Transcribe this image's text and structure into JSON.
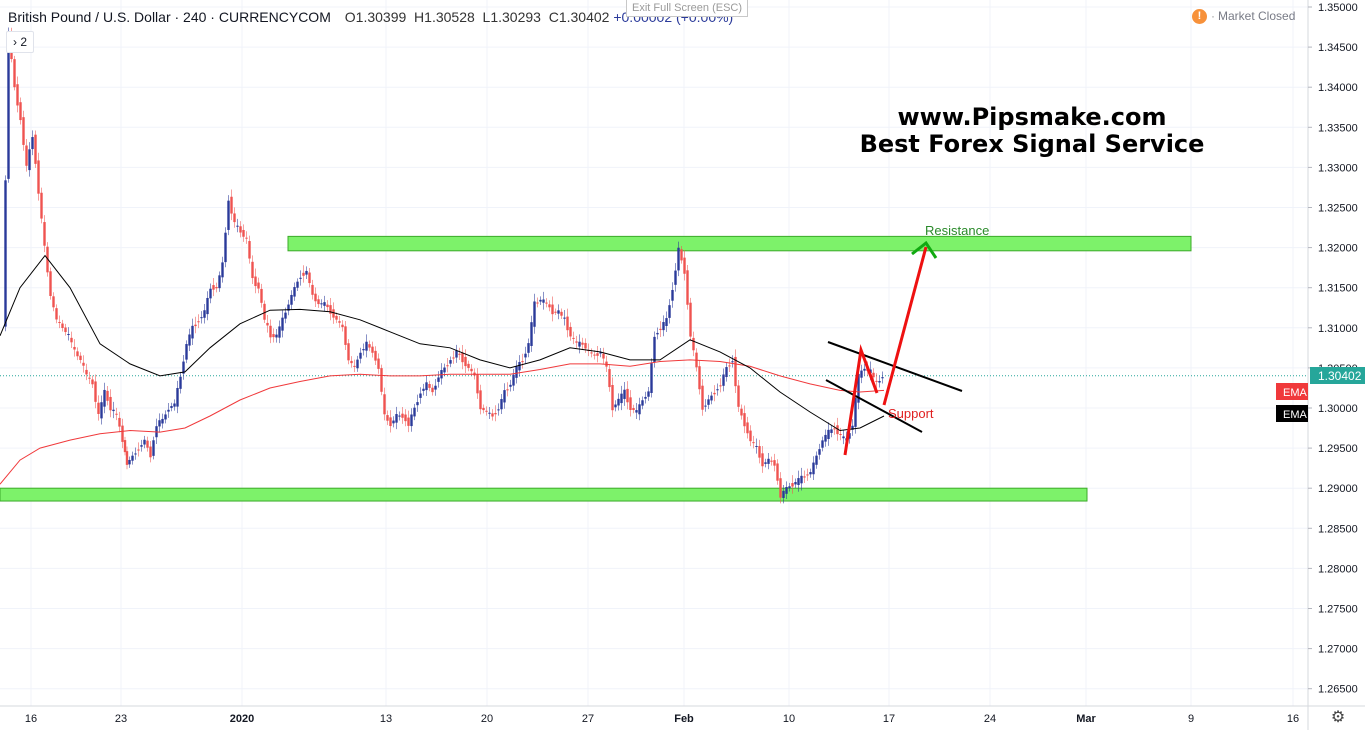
{
  "header": {
    "symbol": "British Pound / U.S. Dollar · 240 · CURRENCYCOM",
    "open": "O1.30399",
    "high": "H1.30528",
    "low": "L1.30293",
    "close": "C1.30402",
    "change": "+0.00002 (+0.00%)"
  },
  "toolbar": {
    "exit_fullscreen": "Exit Full Screen (ESC)",
    "collapse_count": "2",
    "market_status": "Market Closed",
    "market_status_icon": "warning-icon",
    "settings_icon": "gear-icon"
  },
  "watermark": {
    "line1": "www.Pipsmake.com",
    "line2": "Best Forex Signal Service"
  },
  "annotations": {
    "resistance": "Resistance",
    "support": "Support"
  },
  "price_axis": {
    "ticks": [
      "1.35000",
      "1.34500",
      "1.34000",
      "1.33500",
      "1.33000",
      "1.32500",
      "1.32000",
      "1.31500",
      "1.31000",
      "1.30500",
      "1.30000",
      "1.29500",
      "1.29000",
      "1.28500",
      "1.28000",
      "1.27500",
      "1.27000",
      "1.26500"
    ],
    "current_price": "1.30402",
    "current_price_color": "#26a69a",
    "ema_fast_label": "EMA",
    "ema_fast_color": "#f0393b",
    "ema_slow_label": "EMA",
    "ema_slow_color": "#000000"
  },
  "time_axis": {
    "ticks": [
      "16",
      "23",
      "2020",
      "13",
      "20",
      "27",
      "Feb",
      "10",
      "17",
      "24",
      "Mar",
      "9",
      "16"
    ]
  },
  "colors": {
    "up_candle": "#2a3a9a",
    "down_candle": "#ef5350",
    "zone_fill": "#7df26a",
    "zone_border": "#3caa2a",
    "resistance_text": "#2a8a2a",
    "support_text": "#e02020",
    "arrow": "#ee1111"
  },
  "chart_data": {
    "type": "candlestick",
    "symbol": "GBPUSD",
    "timeframe": "240",
    "ylim": [
      1.2625,
      1.3505
    ],
    "levels": {
      "resistance_zone": [
        1.3196,
        1.3214
      ],
      "support_zone": [
        1.2884,
        1.29
      ],
      "last_price": 1.30402
    },
    "price_path": [
      [
        4,
        1.31
      ],
      [
        10,
        1.347
      ],
      [
        16,
        1.34
      ],
      [
        22,
        1.336
      ],
      [
        28,
        1.33
      ],
      [
        34,
        1.334
      ],
      [
        40,
        1.327
      ],
      [
        46,
        1.32
      ],
      [
        52,
        1.314
      ],
      [
        58,
        1.311
      ],
      [
        64,
        1.31
      ],
      [
        70,
        1.309
      ],
      [
        76,
        1.307
      ],
      [
        82,
        1.306
      ],
      [
        88,
        1.304
      ],
      [
        94,
        1.303
      ],
      [
        100,
        1.299
      ],
      [
        106,
        1.302
      ],
      [
        112,
        1.3
      ],
      [
        118,
        1.299
      ],
      [
        124,
        1.296
      ],
      [
        128,
        1.293
      ],
      [
        134,
        1.294
      ],
      [
        140,
        1.295
      ],
      [
        146,
        1.296
      ],
      [
        152,
        1.294
      ],
      [
        158,
        1.298
      ],
      [
        164,
        1.2985
      ],
      [
        170,
        1.3
      ],
      [
        176,
        1.3005
      ],
      [
        182,
        1.304
      ],
      [
        188,
        1.308
      ],
      [
        194,
        1.31
      ],
      [
        200,
        1.311
      ],
      [
        206,
        1.312
      ],
      [
        212,
        1.315
      ],
      [
        218,
        1.315
      ],
      [
        224,
        1.318
      ],
      [
        230,
        1.326
      ],
      [
        236,
        1.323
      ],
      [
        242,
        1.322
      ],
      [
        248,
        1.321
      ],
      [
        254,
        1.316
      ],
      [
        260,
        1.315
      ],
      [
        266,
        1.311
      ],
      [
        272,
        1.309
      ],
      [
        278,
        1.309
      ],
      [
        284,
        1.311
      ],
      [
        290,
        1.313
      ],
      [
        296,
        1.315
      ],
      [
        302,
        1.3165
      ],
      [
        308,
        1.317
      ],
      [
        314,
        1.314
      ],
      [
        320,
        1.313
      ],
      [
        326,
        1.313
      ],
      [
        332,
        1.312
      ],
      [
        338,
        1.311
      ],
      [
        344,
        1.31
      ],
      [
        350,
        1.306
      ],
      [
        356,
        1.305
      ],
      [
        362,
        1.307
      ],
      [
        368,
        1.308
      ],
      [
        374,
        1.307
      ],
      [
        380,
        1.305
      ],
      [
        386,
        1.299
      ],
      [
        392,
        1.298
      ],
      [
        398,
        1.299
      ],
      [
        404,
        1.299
      ],
      [
        410,
        1.298
      ],
      [
        416,
        1.3
      ],
      [
        422,
        1.302
      ],
      [
        428,
        1.303
      ],
      [
        434,
        1.302
      ],
      [
        440,
        1.304
      ],
      [
        446,
        1.305
      ],
      [
        452,
        1.306
      ],
      [
        458,
        1.307
      ],
      [
        464,
        1.306
      ],
      [
        470,
        1.305
      ],
      [
        476,
        1.304
      ],
      [
        482,
        1.3
      ],
      [
        488,
        1.2995
      ],
      [
        494,
        1.299
      ],
      [
        500,
        1.3
      ],
      [
        506,
        1.302
      ],
      [
        512,
        1.303
      ],
      [
        518,
        1.305
      ],
      [
        524,
        1.306
      ],
      [
        530,
        1.308
      ],
      [
        536,
        1.313
      ],
      [
        542,
        1.3135
      ],
      [
        548,
        1.313
      ],
      [
        554,
        1.312
      ],
      [
        560,
        1.312
      ],
      [
        566,
        1.311
      ],
      [
        572,
        1.309
      ],
      [
        578,
        1.308
      ],
      [
        584,
        1.308
      ],
      [
        590,
        1.307
      ],
      [
        596,
        1.3065
      ],
      [
        602,
        1.307
      ],
      [
        608,
        1.305
      ],
      [
        614,
        1.3
      ],
      [
        620,
        1.301
      ],
      [
        626,
        1.302
      ],
      [
        632,
        1.3
      ],
      [
        638,
        1.2995
      ],
      [
        644,
        1.301
      ],
      [
        650,
        1.302
      ],
      [
        656,
        1.309
      ],
      [
        662,
        1.31
      ],
      [
        668,
        1.311
      ],
      [
        674,
        1.315
      ],
      [
        680,
        1.3198
      ],
      [
        686,
        1.317
      ],
      [
        692,
        1.309
      ],
      [
        698,
        1.305
      ],
      [
        704,
        1.3
      ],
      [
        710,
        1.301
      ],
      [
        716,
        1.302
      ],
      [
        722,
        1.303
      ],
      [
        728,
        1.305
      ],
      [
        734,
        1.306
      ],
      [
        740,
        1.3
      ],
      [
        746,
        1.298
      ],
      [
        752,
        1.296
      ],
      [
        758,
        1.295
      ],
      [
        764,
        1.293
      ],
      [
        770,
        1.2935
      ],
      [
        776,
        1.293
      ],
      [
        782,
        1.289
      ],
      [
        788,
        1.29
      ],
      [
        794,
        1.2905
      ],
      [
        800,
        1.291
      ],
      [
        806,
        1.2915
      ],
      [
        812,
        1.292
      ],
      [
        818,
        1.294
      ],
      [
        824,
        1.296
      ],
      [
        830,
        1.297
      ],
      [
        836,
        1.2975
      ],
      [
        842,
        1.2965
      ],
      [
        848,
        1.296
      ],
      [
        854,
        1.298
      ],
      [
        860,
        1.304
      ],
      [
        866,
        1.305
      ],
      [
        872,
        1.3045
      ],
      [
        878,
        1.303
      ],
      [
        884,
        1.304
      ]
    ],
    "ema_slow": [
      [
        0,
        1.309
      ],
      [
        20,
        1.315
      ],
      [
        45,
        1.319
      ],
      [
        70,
        1.315
      ],
      [
        100,
        1.308
      ],
      [
        130,
        1.3055
      ],
      [
        160,
        1.304
      ],
      [
        185,
        1.3045
      ],
      [
        210,
        1.3075
      ],
      [
        240,
        1.3105
      ],
      [
        270,
        1.3122
      ],
      [
        300,
        1.3123
      ],
      [
        330,
        1.312
      ],
      [
        360,
        1.311
      ],
      [
        390,
        1.3095
      ],
      [
        420,
        1.308
      ],
      [
        450,
        1.3075
      ],
      [
        480,
        1.306
      ],
      [
        510,
        1.305
      ],
      [
        540,
        1.306
      ],
      [
        570,
        1.3075
      ],
      [
        600,
        1.307
      ],
      [
        630,
        1.306
      ],
      [
        660,
        1.306
      ],
      [
        690,
        1.3085
      ],
      [
        720,
        1.307
      ],
      [
        750,
        1.305
      ],
      [
        780,
        1.302
      ],
      [
        810,
        1.2995
      ],
      [
        840,
        1.2972
      ],
      [
        860,
        1.2975
      ],
      [
        884,
        1.299
      ]
    ],
    "ema_fast": [
      [
        0,
        1.2905
      ],
      [
        20,
        1.2935
      ],
      [
        40,
        1.295
      ],
      [
        70,
        1.296
      ],
      [
        100,
        1.2968
      ],
      [
        130,
        1.2972
      ],
      [
        160,
        1.297
      ],
      [
        185,
        1.2975
      ],
      [
        210,
        1.299
      ],
      [
        240,
        1.301
      ],
      [
        270,
        1.3025
      ],
      [
        300,
        1.3033
      ],
      [
        330,
        1.304
      ],
      [
        360,
        1.3042
      ],
      [
        390,
        1.304
      ],
      [
        420,
        1.304
      ],
      [
        450,
        1.3042
      ],
      [
        480,
        1.3042
      ],
      [
        510,
        1.3042
      ],
      [
        540,
        1.3048
      ],
      [
        570,
        1.3055
      ],
      [
        600,
        1.3055
      ],
      [
        630,
        1.3052
      ],
      [
        660,
        1.3058
      ],
      [
        690,
        1.306
      ],
      [
        720,
        1.3058
      ],
      [
        750,
        1.3052
      ],
      [
        780,
        1.304
      ],
      [
        810,
        1.303
      ],
      [
        840,
        1.3022
      ],
      [
        860,
        1.302
      ],
      [
        884,
        1.3022
      ]
    ]
  }
}
